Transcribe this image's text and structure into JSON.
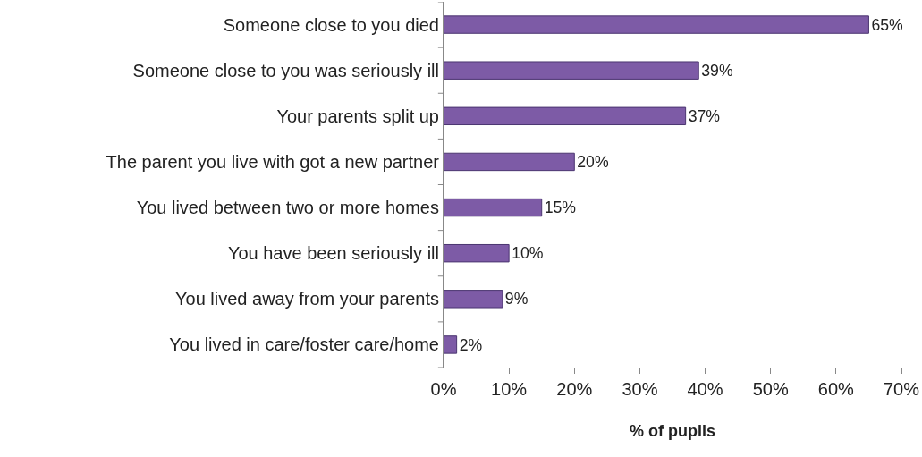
{
  "chart_data": {
    "type": "bar",
    "orientation": "horizontal",
    "xlabel": "% of pupils",
    "categories": [
      "Someone close to you died",
      "Someone close to you was seriously ill",
      "Your parents split up",
      "The parent you live with got a new partner",
      "You lived between two or more homes",
      "You have been seriously ill",
      "You lived away from your parents",
      "You lived in care/foster care/home"
    ],
    "values": [
      65,
      39,
      37,
      20,
      15,
      10,
      9,
      2
    ],
    "value_labels": [
      "65%",
      "39%",
      "37%",
      "20%",
      "15%",
      "10%",
      "9%",
      "2%"
    ],
    "color": "#7d5ba6",
    "xlim": [
      0,
      70
    ],
    "xticks": [
      {
        "value": 0,
        "label": "0%"
      },
      {
        "value": 10,
        "label": "10%"
      },
      {
        "value": 20,
        "label": "20%"
      },
      {
        "value": 30,
        "label": "30%"
      },
      {
        "value": 40,
        "label": "40%"
      },
      {
        "value": 50,
        "label": "50%"
      },
      {
        "value": 60,
        "label": "60%"
      },
      {
        "value": 70,
        "label": "70%"
      }
    ],
    "grid": false
  }
}
